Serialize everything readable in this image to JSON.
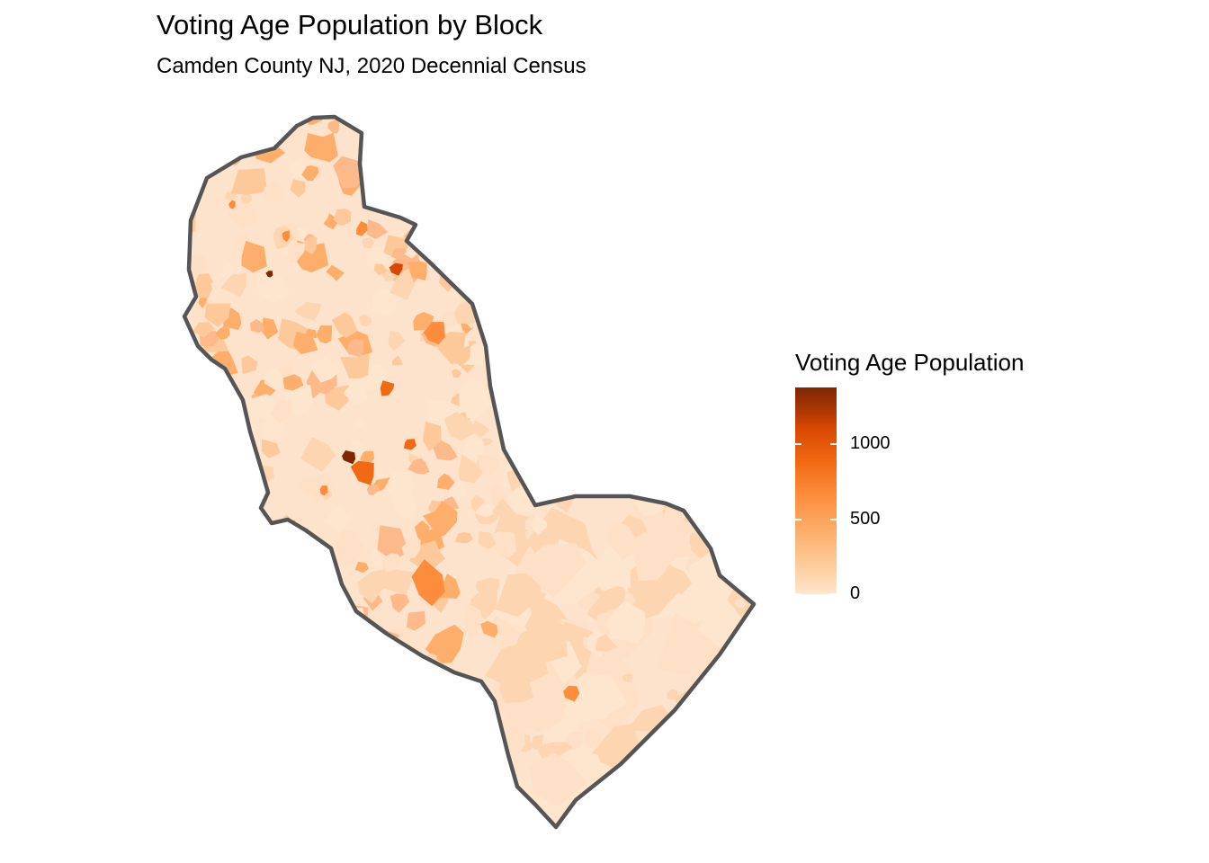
{
  "title": "Voting Age Population by Block",
  "subtitle": "Camden County NJ, 2020 Decennial Census",
  "map": {
    "region": "Camden County NJ",
    "unit": "Block",
    "variable": "Voting Age Population",
    "color_scale": [
      "#fee6ce",
      "#fdd0a2",
      "#fdae6b",
      "#fd8d3c",
      "#f16913",
      "#d94801",
      "#a63603",
      "#7f2704"
    ],
    "border_color": "#555555",
    "base_fill": "#fde3cc"
  },
  "legend": {
    "title": "Voting Age Population",
    "ticks": [
      {
        "label": "1000",
        "value": 1000
      },
      {
        "label": "500",
        "value": 500
      },
      {
        "label": "0",
        "value": 0
      }
    ],
    "max_value": 1380
  }
}
